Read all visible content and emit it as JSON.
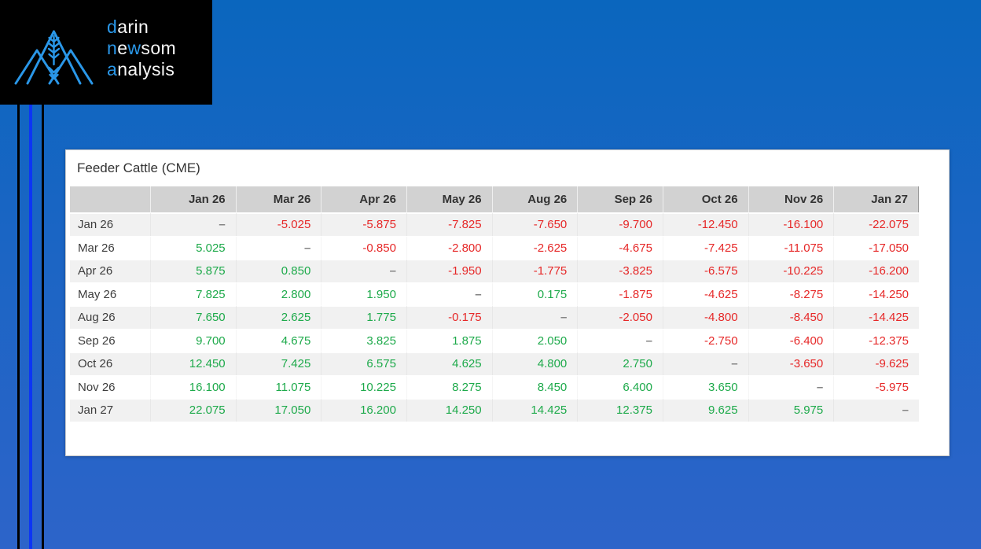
{
  "logo": {
    "lines": [
      {
        "segments": [
          {
            "t": "d",
            "c": "blue"
          },
          {
            "t": "arin",
            "c": "white"
          }
        ]
      },
      {
        "segments": [
          {
            "t": "n",
            "c": "blue"
          },
          {
            "t": "e",
            "c": "white"
          },
          {
            "t": "w",
            "c": "blue"
          },
          {
            "t": "som",
            "c": "white"
          }
        ]
      },
      {
        "segments": [
          {
            "t": "a",
            "c": "blue"
          },
          {
            "t": "nalysis",
            "c": "white"
          }
        ]
      }
    ]
  },
  "table": {
    "title": "Feeder Cattle (CME)",
    "columns": [
      "Jan 26",
      "Mar 26",
      "Apr 26",
      "May 26",
      "Aug 26",
      "Sep 26",
      "Oct 26",
      "Nov 26",
      "Jan 27"
    ],
    "rows": [
      {
        "label": "Jan 26",
        "values": [
          "–",
          "-5.025",
          "-5.875",
          "-7.825",
          "-7.650",
          "-9.700",
          "-12.450",
          "-16.100",
          "-22.075"
        ]
      },
      {
        "label": "Mar 26",
        "values": [
          "5.025",
          "–",
          "-0.850",
          "-2.800",
          "-2.625",
          "-4.675",
          "-7.425",
          "-11.075",
          "-17.050"
        ]
      },
      {
        "label": "Apr 26",
        "values": [
          "5.875",
          "0.850",
          "–",
          "-1.950",
          "-1.775",
          "-3.825",
          "-6.575",
          "-10.225",
          "-16.200"
        ]
      },
      {
        "label": "May 26",
        "values": [
          "7.825",
          "2.800",
          "1.950",
          "–",
          "0.175",
          "-1.875",
          "-4.625",
          "-8.275",
          "-14.250"
        ]
      },
      {
        "label": "Aug 26",
        "values": [
          "7.650",
          "2.625",
          "1.775",
          "-0.175",
          "–",
          "-2.050",
          "-4.800",
          "-8.450",
          "-14.425"
        ]
      },
      {
        "label": "Sep 26",
        "values": [
          "9.700",
          "4.675",
          "3.825",
          "1.875",
          "2.050",
          "–",
          "-2.750",
          "-6.400",
          "-12.375"
        ]
      },
      {
        "label": "Oct 26",
        "values": [
          "12.450",
          "7.425",
          "6.575",
          "4.625",
          "4.800",
          "2.750",
          "–",
          "-3.650",
          "-9.625"
        ]
      },
      {
        "label": "Nov 26",
        "values": [
          "16.100",
          "11.075",
          "10.225",
          "8.275",
          "8.450",
          "6.400",
          "3.650",
          "–",
          "-5.975"
        ]
      },
      {
        "label": "Jan 27",
        "values": [
          "22.075",
          "17.050",
          "16.200",
          "14.250",
          "14.425",
          "12.375",
          "9.625",
          "5.975",
          "–"
        ]
      }
    ]
  },
  "colors": {
    "background_top": "#0a66be",
    "background_bottom": "#2d64c9",
    "logo_bg": "#000000",
    "logo_blue": "#2a97e8",
    "logo_white": "#f7f7f7",
    "stripe_black": "#000000",
    "stripe_blue": "#0c35f5",
    "card_bg": "#ffffff",
    "card_border": "#c9c9c9",
    "header_bg": "#d2d2d2",
    "header_text": "#333333",
    "row_stripe": "#f1f1f1",
    "label_text": "#3d3d3d",
    "positive": "#1eaa4b",
    "negative": "#e62828",
    "dash": "#828282",
    "title_text": "#333333"
  }
}
